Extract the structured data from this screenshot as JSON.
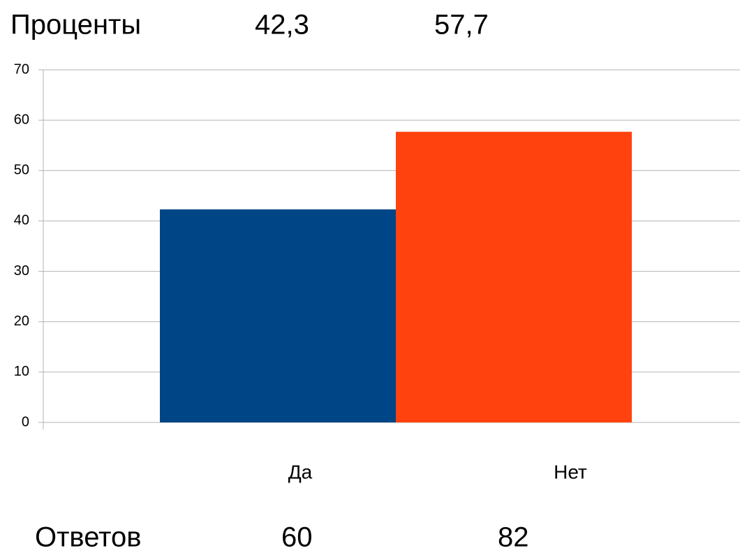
{
  "chart_data": {
    "type": "bar",
    "categories": [
      "Да",
      "Нет"
    ],
    "series": [
      {
        "name": "Проценты",
        "values": [
          42.3,
          57.7
        ],
        "value_labels": [
          "42,3",
          "57,7"
        ],
        "colors": [
          "#004586",
          "#ff420e"
        ]
      }
    ],
    "counts": {
      "name": "Ответов",
      "values": [
        60,
        82
      ]
    },
    "ylim": [
      0,
      70
    ],
    "yticks": [
      0,
      10,
      20,
      30,
      40,
      50,
      60,
      70
    ],
    "grid": true
  }
}
